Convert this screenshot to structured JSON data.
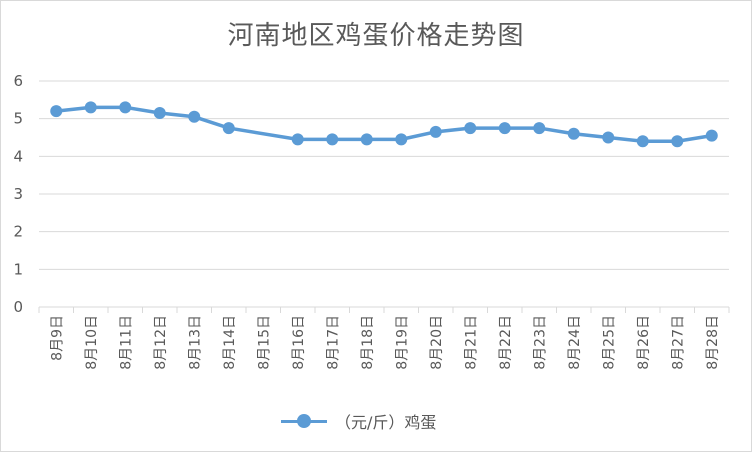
{
  "chart_data": {
    "type": "line",
    "title": "河南地区鸡蛋价格走势图",
    "categories": [
      "8月9日",
      "8月10日",
      "8月11日",
      "8月12日",
      "8月13日",
      "8月14日",
      "8月15日",
      "8月16日",
      "8月17日",
      "8月18日",
      "8月19日",
      "8月20日",
      "8月21日",
      "8月22日",
      "8月23日",
      "8月24日",
      "8月25日",
      "8月26日",
      "8月27日",
      "8月28日"
    ],
    "series": [
      {
        "name": "（元/斤）鸡蛋",
        "values": [
          5.2,
          5.3,
          5.3,
          5.15,
          5.05,
          4.75,
          null,
          4.45,
          4.45,
          4.45,
          4.45,
          4.65,
          4.75,
          4.75,
          4.75,
          4.6,
          4.5,
          4.4,
          4.4,
          4.55
        ]
      }
    ],
    "ylim": [
      0,
      6
    ],
    "yticks": [
      0,
      1,
      2,
      3,
      4,
      5,
      6
    ],
    "grid": true,
    "legend": "bottom",
    "colors": {
      "series": "#5b9bd5",
      "grid": "#d9d9d9",
      "text": "#595959"
    }
  }
}
